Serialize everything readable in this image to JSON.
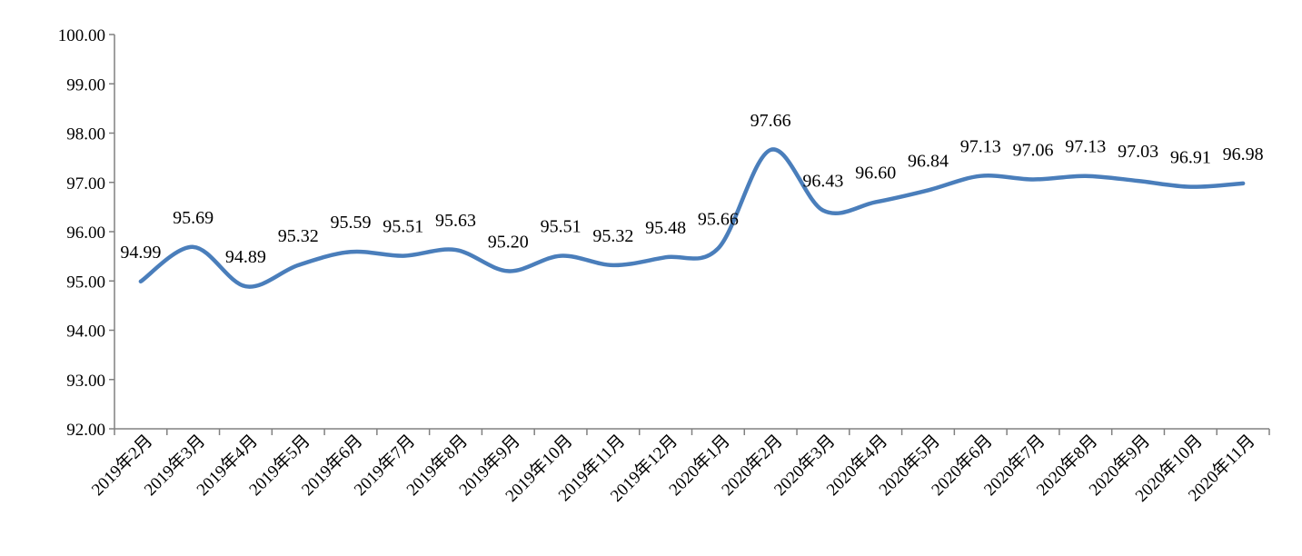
{
  "chart_data": {
    "type": "line",
    "title": "",
    "xlabel": "",
    "ylabel": "",
    "categories": [
      "2019年2月",
      "2019年3月",
      "2019年4月",
      "2019年5月",
      "2019年6月",
      "2019年7月",
      "2019年8月",
      "2019年9月",
      "2019年10月",
      "2019年11月",
      "2019年12月",
      "2020年1月",
      "2020年2月",
      "2020年3月",
      "2020年4月",
      "2020年5月",
      "2020年6月",
      "2020年7月",
      "2020年8月",
      "2020年9月",
      "2020年10月",
      "2020年11月"
    ],
    "series": [
      {
        "values": [
          94.99,
          95.69,
          94.89,
          95.32,
          95.59,
          95.51,
          95.63,
          95.2,
          95.51,
          95.32,
          95.48,
          95.66,
          97.66,
          96.43,
          96.6,
          96.84,
          97.13,
          97.06,
          97.13,
          97.03,
          96.91,
          96.98
        ],
        "data_labels": [
          "94.99",
          "95.69",
          "94.89",
          "95.32",
          "95.59",
          "95.51",
          "95.63",
          "95.20",
          "95.51",
          "95.32",
          "95.48",
          "95.66",
          "97.66",
          "96.43",
          "96.60",
          "96.84",
          "97.13",
          "97.06",
          "97.13",
          "97.03",
          "96.91",
          "96.98"
        ],
        "color": "#4a7ebb"
      }
    ],
    "ylim": [
      92,
      100
    ],
    "yticks": [
      "92.00",
      "93.00",
      "94.00",
      "95.00",
      "96.00",
      "97.00",
      "98.00",
      "99.00",
      "100.00"
    ],
    "grid": false,
    "legend": "none"
  }
}
